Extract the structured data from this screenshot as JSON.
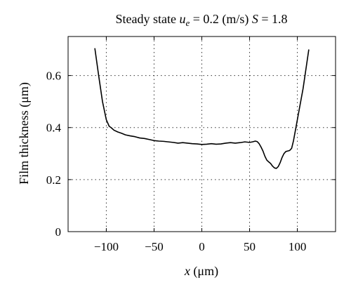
{
  "chart_data": {
    "type": "line",
    "title": {
      "prefix": "Steady state ",
      "u_symbol": "u",
      "u_subscript": "e",
      "middle": " = 0.2 (m/s) ",
      "s_symbol": "S",
      "suffix": " = 1.8"
    },
    "xlabel": {
      "symbol": "x",
      "rest": " (μm)"
    },
    "ylabel": "Film thickness (μm)",
    "xlim": [
      -140,
      140
    ],
    "ylim": [
      0,
      0.75
    ],
    "xticks": [
      -100,
      -50,
      0,
      50,
      100
    ],
    "xtick_labels": [
      "−100",
      "−50",
      "0",
      "50",
      "100"
    ],
    "yticks": [
      0,
      0.2,
      0.4,
      0.6
    ],
    "ytick_labels": [
      "0",
      "0.2",
      "0.4",
      "0.6"
    ],
    "grid": true,
    "line_color": "#000000",
    "series": [
      {
        "x": [
          -112,
          -108,
          -104,
          -100,
          -97,
          -95,
          -92,
          -88,
          -84,
          -80,
          -75,
          -70,
          -65,
          -60,
          -55,
          -50,
          -45,
          -40,
          -35,
          -30,
          -25,
          -20,
          -15,
          -10,
          -5,
          0,
          5,
          10,
          15,
          20,
          25,
          30,
          35,
          40,
          45,
          50,
          53,
          56,
          58,
          60,
          62,
          64,
          66,
          68,
          70,
          72,
          74,
          76,
          78,
          80,
          82,
          84,
          86,
          88,
          90,
          92,
          94,
          96,
          98,
          100,
          102,
          104,
          106,
          108,
          110,
          112
        ],
        "y": [
          0.705,
          0.6,
          0.5,
          0.43,
          0.405,
          0.4,
          0.39,
          0.383,
          0.378,
          0.372,
          0.368,
          0.365,
          0.36,
          0.358,
          0.354,
          0.35,
          0.348,
          0.347,
          0.345,
          0.343,
          0.34,
          0.342,
          0.34,
          0.338,
          0.337,
          0.335,
          0.336,
          0.338,
          0.336,
          0.337,
          0.34,
          0.342,
          0.34,
          0.342,
          0.345,
          0.343,
          0.345,
          0.348,
          0.346,
          0.338,
          0.325,
          0.31,
          0.29,
          0.275,
          0.268,
          0.262,
          0.252,
          0.245,
          0.243,
          0.25,
          0.265,
          0.285,
          0.3,
          0.308,
          0.31,
          0.312,
          0.32,
          0.35,
          0.39,
          0.43,
          0.47,
          0.51,
          0.55,
          0.6,
          0.65,
          0.7
        ]
      }
    ]
  }
}
